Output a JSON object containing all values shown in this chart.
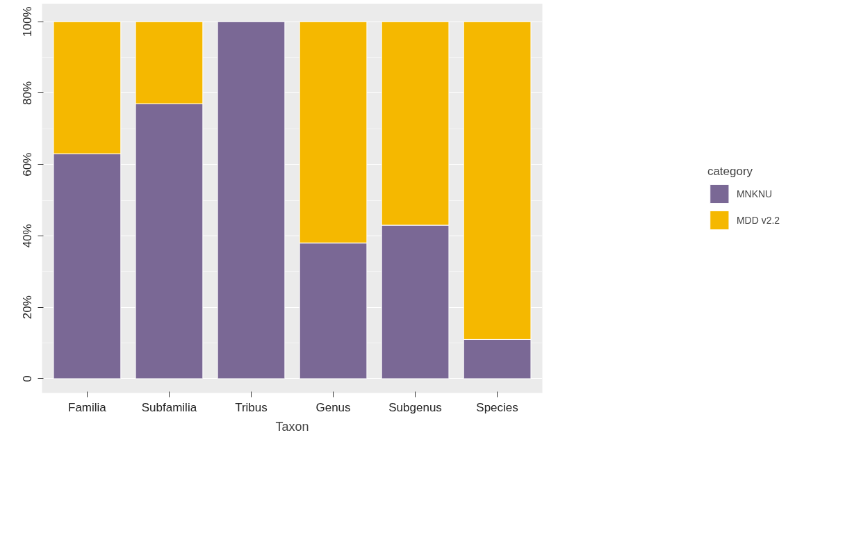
{
  "chart_data": {
    "type": "bar",
    "stacked": true,
    "xlabel": "Taxon",
    "legend_title": "category",
    "categories": [
      "Familia",
      "Subfamilia",
      "Tribus",
      "Genus",
      "Subgenus",
      "Species"
    ],
    "series": [
      {
        "name": "MNKNU",
        "color": "#7a6895",
        "values": [
          63,
          77,
          100,
          38,
          43,
          11
        ]
      },
      {
        "name": "MDD v2.2",
        "color": "#f5b800",
        "values": [
          37,
          23,
          0,
          62,
          57,
          89
        ]
      }
    ],
    "ylim": [
      -4,
      105
    ],
    "yticks": [
      {
        "value": 0,
        "label": "0"
      },
      {
        "value": 20,
        "label": "20%"
      },
      {
        "value": 40,
        "label": "40%"
      },
      {
        "value": 60,
        "label": "60%"
      },
      {
        "value": 80,
        "label": "80%"
      },
      {
        "value": 100,
        "label": "100%"
      }
    ],
    "grid": "y",
    "legend": "right"
  }
}
